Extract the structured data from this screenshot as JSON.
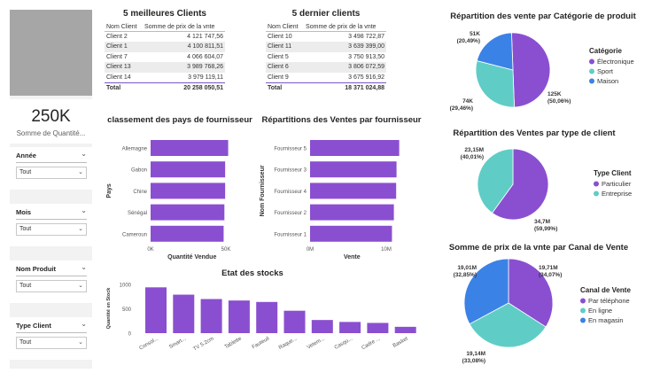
{
  "kpi": {
    "value": "250K",
    "label": "Somme de Quantité..."
  },
  "slicers": [
    {
      "title": "Année",
      "value": "Tout"
    },
    {
      "title": "Mois",
      "value": "Tout"
    },
    {
      "title": "Nom Produit",
      "value": "Tout"
    },
    {
      "title": "Type Client",
      "value": "Tout"
    }
  ],
  "icons": {
    "chevron": "chevron-down-icon"
  },
  "colors": {
    "purple": "#8a4fd0",
    "teal": "#5fcdc6",
    "blue": "#3b82e6",
    "grey": "#a6a6a6"
  },
  "chart_data": [
    {
      "type": "table",
      "title": "5 meilleures Clients",
      "columns": [
        "Nom Client",
        "Somme de prix de la vnte"
      ],
      "rows": [
        [
          "Client 2",
          "4 121 747,56"
        ],
        [
          "Client 1",
          "4 100 811,51"
        ],
        [
          "Client 7",
          "4 066 604,07"
        ],
        [
          "Client 13",
          "3 989 768,26"
        ],
        [
          "Client 14",
          "3 979 119,11"
        ]
      ],
      "total": [
        "Total",
        "20 258 050,51"
      ]
    },
    {
      "type": "table",
      "title": "5 dernier clients",
      "columns": [
        "Nom Client",
        "Somme de prix de la vnte"
      ],
      "rows": [
        [
          "Client 10",
          "3 498 722,87"
        ],
        [
          "Client 11",
          "3 639 399,00"
        ],
        [
          "Client 5",
          "3 750 913,50"
        ],
        [
          "Client 6",
          "3 806 072,59"
        ],
        [
          "Client 9",
          "3 675 916,92"
        ]
      ],
      "total": [
        "Total",
        "18 371 024,88"
      ]
    },
    {
      "type": "bar",
      "orientation": "horizontal",
      "title": "classement des pays de fournisseur",
      "categories": [
        "Allemagne",
        "Gabon",
        "Chine",
        "Sénégal",
        "Cameroun"
      ],
      "values": [
        51500,
        49500,
        49500,
        49000,
        48500
      ],
      "xlabel": "Quantité Vendue",
      "ylabel": "Pays",
      "xlim": [
        0,
        50000
      ],
      "xticks": [
        "0K",
        "50K"
      ]
    },
    {
      "type": "bar",
      "orientation": "horizontal",
      "title": "Répartitions des Ventes par fournisseur",
      "categories": [
        "Fournisseur 5",
        "Fournisseur 3",
        "Fournisseur 4",
        "Fournisseur 2",
        "Fournisseur 1"
      ],
      "values": [
        11700000,
        11350000,
        11300000,
        11000000,
        10750000
      ],
      "xlabel": "Vente",
      "ylabel": "Nom Fournisseur",
      "xlim": [
        0,
        10000000
      ],
      "xticks": [
        "0M",
        "10M"
      ]
    },
    {
      "type": "bar",
      "title": "Etat des stocks",
      "categories": [
        "Consol...",
        "Smart...",
        "TV 5.2cm",
        "Tablette",
        "Fauteuil",
        "Raque...",
        "Vetem...",
        "Casqu...",
        "Cadre ...",
        "Basket"
      ],
      "values": [
        940,
        790,
        700,
        670,
        640,
        460,
        270,
        230,
        210,
        130
      ],
      "ylabel": "Quantité en Stock",
      "ylim": [
        0,
        1000
      ],
      "yticks": [
        0,
        500,
        1000
      ]
    },
    {
      "type": "pie",
      "title": "Répartition des vente par Catégorie de produit",
      "legend_title": "Catégorie",
      "slices": [
        {
          "name": "Électronique",
          "value": 125000,
          "label": "125K",
          "pct": "(50,06%)"
        },
        {
          "name": "Sport",
          "value": 74000,
          "label": "74K",
          "pct": "(29,46%)"
        },
        {
          "name": "Maison",
          "value": 51000,
          "label": "51K",
          "pct": "(20,49%)"
        }
      ]
    },
    {
      "type": "pie",
      "title": "Répartition des Ventes par type de client",
      "legend_title": "Type Client",
      "slices": [
        {
          "name": "Particulier",
          "value": 34700000,
          "label": "34,7M",
          "pct": "(59,99%)"
        },
        {
          "name": "Entreprise",
          "value": 23150000,
          "label": "23,15M",
          "pct": "(40,01%)"
        }
      ]
    },
    {
      "type": "pie",
      "title": "Somme de prix de la vnte par Canal de Vente",
      "legend_title": "Canal de Vente",
      "slices": [
        {
          "name": "Par téléphone",
          "value": 19710000,
          "label": "19,71M",
          "pct": "(34,07%)"
        },
        {
          "name": "En ligne",
          "value": 19140000,
          "label": "19,14M",
          "pct": "(33,08%)"
        },
        {
          "name": "En magasin",
          "value": 19010000,
          "label": "19,01M",
          "pct": "(32,85%)"
        }
      ]
    }
  ]
}
